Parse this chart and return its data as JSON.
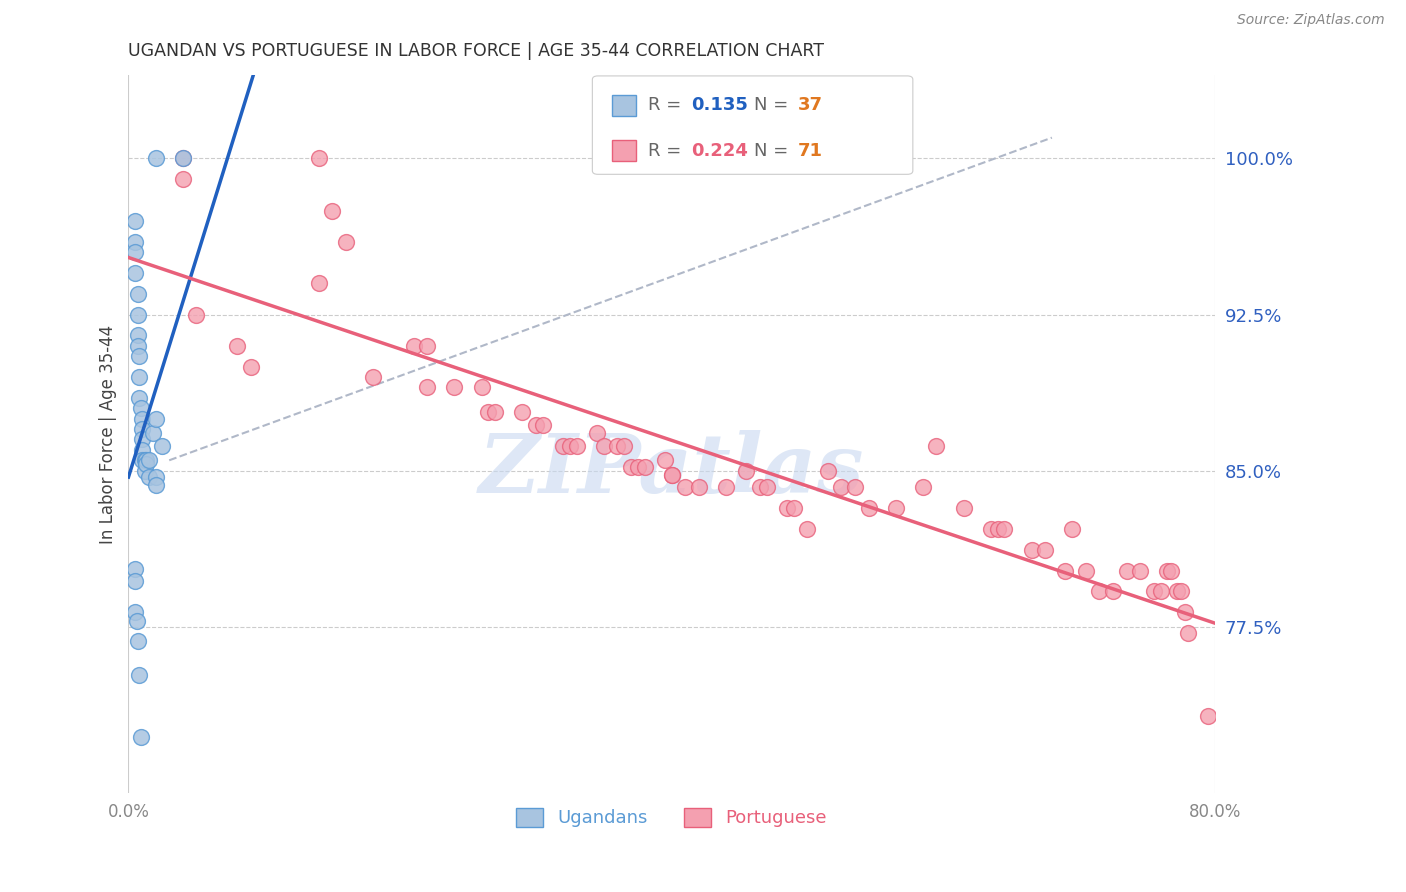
{
  "title": "UGANDAN VS PORTUGUESE IN LABOR FORCE | AGE 35-44 CORRELATION CHART",
  "source": "Source: ZipAtlas.com",
  "ylabel": "In Labor Force | Age 35-44",
  "xlim": [
    0.0,
    0.8
  ],
  "ylim": [
    0.695,
    1.04
  ],
  "yticks": [
    0.775,
    0.85,
    0.925,
    1.0
  ],
  "ytick_labels": [
    "77.5%",
    "85.0%",
    "92.5%",
    "100.0%"
  ],
  "xticks": [
    0.0,
    0.1,
    0.2,
    0.3,
    0.4,
    0.5,
    0.6,
    0.7,
    0.8
  ],
  "xtick_labels": [
    "0.0%",
    "",
    "",
    "",
    "",
    "",
    "",
    "",
    "80.0%"
  ],
  "ugandan_x": [
    0.02,
    0.04,
    0.005,
    0.005,
    0.005,
    0.005,
    0.007,
    0.007,
    0.007,
    0.007,
    0.008,
    0.008,
    0.008,
    0.009,
    0.01,
    0.01,
    0.01,
    0.01,
    0.01,
    0.012,
    0.012,
    0.013,
    0.013,
    0.015,
    0.015,
    0.018,
    0.02,
    0.02,
    0.02,
    0.025,
    0.005,
    0.005,
    0.005,
    0.006,
    0.007,
    0.008,
    0.009
  ],
  "ugandan_y": [
    1.0,
    1.0,
    0.97,
    0.96,
    0.955,
    0.945,
    0.935,
    0.925,
    0.915,
    0.91,
    0.905,
    0.895,
    0.885,
    0.88,
    0.875,
    0.87,
    0.865,
    0.86,
    0.855,
    0.855,
    0.85,
    0.855,
    0.853,
    0.855,
    0.847,
    0.868,
    0.847,
    0.843,
    0.875,
    0.862,
    0.803,
    0.797,
    0.782,
    0.778,
    0.768,
    0.752,
    0.722
  ],
  "portuguese_x": [
    0.04,
    0.14,
    0.04,
    0.15,
    0.16,
    0.14,
    0.05,
    0.08,
    0.09,
    0.18,
    0.21,
    0.22,
    0.22,
    0.24,
    0.26,
    0.265,
    0.27,
    0.29,
    0.3,
    0.305,
    0.32,
    0.325,
    0.33,
    0.345,
    0.35,
    0.36,
    0.365,
    0.37,
    0.375,
    0.38,
    0.395,
    0.4,
    0.4,
    0.41,
    0.42,
    0.44,
    0.455,
    0.465,
    0.47,
    0.485,
    0.49,
    0.5,
    0.515,
    0.525,
    0.535,
    0.545,
    0.565,
    0.585,
    0.595,
    0.615,
    0.635,
    0.64,
    0.645,
    0.665,
    0.675,
    0.69,
    0.695,
    0.705,
    0.715,
    0.725,
    0.735,
    0.745,
    0.755,
    0.76,
    0.765,
    0.768,
    0.772,
    0.775,
    0.778,
    0.78,
    0.795
  ],
  "portuguese_y": [
    1.0,
    1.0,
    0.99,
    0.975,
    0.96,
    0.94,
    0.925,
    0.91,
    0.9,
    0.895,
    0.91,
    0.91,
    0.89,
    0.89,
    0.89,
    0.878,
    0.878,
    0.878,
    0.872,
    0.872,
    0.862,
    0.862,
    0.862,
    0.868,
    0.862,
    0.862,
    0.862,
    0.852,
    0.852,
    0.852,
    0.855,
    0.848,
    0.848,
    0.842,
    0.842,
    0.842,
    0.85,
    0.842,
    0.842,
    0.832,
    0.832,
    0.822,
    0.85,
    0.842,
    0.842,
    0.832,
    0.832,
    0.842,
    0.862,
    0.832,
    0.822,
    0.822,
    0.822,
    0.812,
    0.812,
    0.802,
    0.822,
    0.802,
    0.792,
    0.792,
    0.802,
    0.802,
    0.792,
    0.792,
    0.802,
    0.802,
    0.792,
    0.792,
    0.782,
    0.772,
    0.732
  ],
  "ugandan_color": "#a8c4e0",
  "portuguese_color": "#f4a0b0",
  "ugandan_edge": "#5b9bd5",
  "portuguese_edge": "#e8607a",
  "blue_line_color": "#2060c0",
  "pink_line_color": "#e8607a",
  "dashed_line_color": "#b0b8c8",
  "blue_r": "0.135",
  "blue_n": "37",
  "pink_r": "0.224",
  "pink_n": "71",
  "r_label_color": "#555555",
  "blue_val_color": "#2060c0",
  "pink_val_color": "#e8607a",
  "n_val_color": "#e07820",
  "watermark_text": "ZIPatlas",
  "watermark_color": "#c8d8f0",
  "axis_label_color": "#3060c0",
  "ylabel_color": "#444444",
  "tick_color": "#888888",
  "grid_color": "#cccccc",
  "background_color": "#ffffff",
  "title_color": "#333333",
  "source_color": "#888888",
  "legend_ugandan_color": "#5b9bd5",
  "legend_portuguese_color": "#e8607a"
}
